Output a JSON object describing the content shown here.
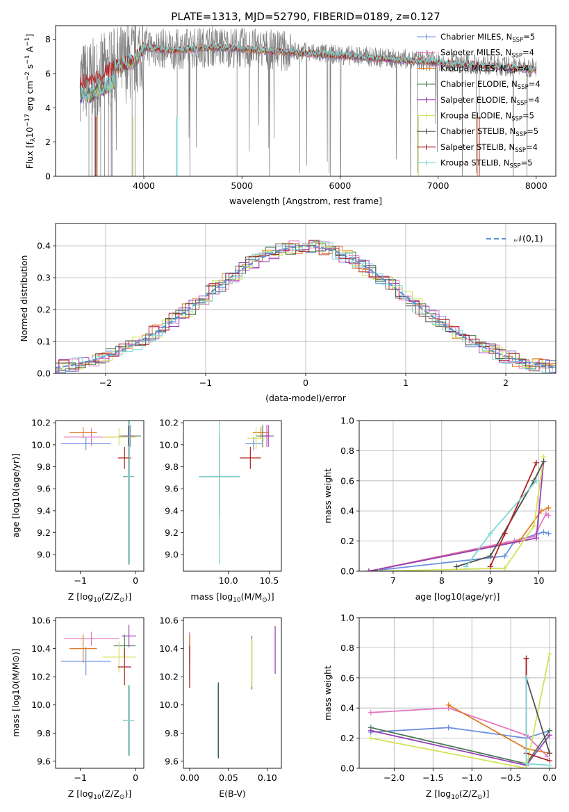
{
  "title": "PLATE=1313, MJD=52790, FIBERID=0189, z=0.127",
  "series_colors": [
    "#5f8f6f",
    "#e377c2",
    "#e07b25",
    "#4a6e4a",
    "#9b3fb5",
    "#d4e157",
    "#444444",
    "#b22222",
    "#7fd6d6"
  ],
  "series_shown": [
    "#6a8ee0",
    "#e377c2",
    "#e07b25",
    "#4a7a55",
    "#9b3fb5",
    "#d4e157",
    "#555555",
    "#b22222",
    "#7fd6d6"
  ],
  "chart_data": [
    {
      "id": "spectrum",
      "type": "line",
      "xlabel": "wavelength [Angstrom, rest frame]",
      "ylabel": "Flux [f_λ 10^-17 erg cm^-2 s^-1 A^-1]",
      "xlim": [
        3100,
        8200
      ],
      "ylim": [
        0,
        8.8
      ],
      "xticks": [
        4000,
        5000,
        6000,
        7000,
        8000
      ],
      "yticks": [
        0,
        2,
        4,
        6,
        8
      ],
      "data_color": "#808080",
      "continuum": {
        "x": [
          3450,
          3700,
          3900,
          4000,
          4300,
          4700,
          5000,
          5500,
          6000,
          6500,
          7000,
          7500,
          8000
        ],
        "y": [
          5.6,
          6.4,
          6.8,
          7.6,
          7.4,
          7.6,
          7.5,
          7.3,
          7.1,
          6.9,
          6.7,
          6.5,
          6.3
        ]
      },
      "legend": [
        {
          "label": "Chabrier MILES, N",
          "sub": "SSP",
          "tail": "=5"
        },
        {
          "label": "Salpeter MILES, N",
          "sub": "SSP",
          "tail": "=4"
        },
        {
          "label": "Kroupa MILES, N",
          "sub": "SSP",
          "tail": "=4"
        },
        {
          "label": "Chabrier ELODIE, N",
          "sub": "SSP",
          "tail": "=4"
        },
        {
          "label": "Salpeter ELODIE, N",
          "sub": "SSP",
          "tail": "=4"
        },
        {
          "label": "Kroupa ELODIE, N",
          "sub": "SSP",
          "tail": "=5"
        },
        {
          "label": "Chabrier STELIB, N",
          "sub": "SSP",
          "tail": "=5"
        },
        {
          "label": "Salpeter STELIB, N",
          "sub": "SSP",
          "tail": "=4"
        },
        {
          "label": "Kroupa STELIB, N",
          "sub": "SSP",
          "tail": "=5"
        }
      ],
      "legend_position": "right"
    },
    {
      "id": "residuals",
      "type": "histogram",
      "xlabel": "(data-model)/error",
      "ylabel": "Normed distribution",
      "xlim": [
        -2.5,
        2.5
      ],
      "ylim": [
        0,
        0.47
      ],
      "xticks": [
        -2,
        -1,
        0,
        1,
        2
      ],
      "yticks": [
        0.0,
        0.1,
        0.2,
        0.3,
        0.4
      ],
      "grid": true,
      "bin_width": 0.1,
      "legend": [
        "𝒩(0,1)"
      ],
      "legend_position": "top-right"
    },
    {
      "id": "age_vs_Z",
      "type": "scatter",
      "xlabel_main": "Z [log",
      "xlabel_sub": "10",
      "xlabel_tail": "(Z/Z",
      "xlabel_sub2": "⊙",
      "xlabel_end": ")]",
      "ylabel": "age  [log10(age/yr)]",
      "xlim": [
        -1.45,
        0.15
      ],
      "ylim": [
        8.85,
        10.22
      ],
      "xticks": [
        -1,
        0
      ],
      "yticks": [
        9.0,
        9.2,
        9.4,
        9.6,
        9.8,
        10.0,
        10.2
      ],
      "points": [
        {
          "x": -0.9,
          "y": 10.01,
          "xerr": 0.45,
          "yerr": 0.06
        },
        {
          "x": -0.8,
          "y": 10.07,
          "xerr": 0.5,
          "yerr": 0.08
        },
        {
          "x": -0.95,
          "y": 10.11,
          "xerr": 0.25,
          "yerr": 0.05
        },
        {
          "x": -0.1,
          "y": 10.08,
          "xerr": 0.2,
          "yerr": 0.1
        },
        {
          "x": -0.13,
          "y": 10.08,
          "xerr": 0.1,
          "yerr": 0.09
        },
        {
          "x": -0.3,
          "y": 10.07,
          "xerr": 0.3,
          "yerr": 0.08
        },
        {
          "x": -0.12,
          "y": 9.71,
          "xerr": 0.1,
          "yerr": 0.8
        },
        {
          "x": -0.2,
          "y": 9.88,
          "xerr": 0.12,
          "yerr": 0.1
        },
        {
          "x": -0.11,
          "y": 9.71,
          "xerr": 0.09,
          "yerr": 0.79
        }
      ]
    },
    {
      "id": "age_vs_mass",
      "type": "scatter",
      "xlabel_main": "mass [log",
      "xlabel_sub": "10",
      "xlabel_tail": "(M/M",
      "xlabel_sub2": "⊙",
      "xlabel_end": ")]",
      "xlim": [
        9.45,
        10.65
      ],
      "ylim": [
        8.85,
        10.22
      ],
      "xticks": [
        10.0,
        10.5
      ],
      "yticks": [
        9.0,
        9.2,
        9.4,
        9.6,
        9.8,
        10.0,
        10.2
      ],
      "points": [
        {
          "x": 10.31,
          "y": 10.01,
          "xerr": 0.1,
          "yerr": 0.06
        },
        {
          "x": 10.47,
          "y": 10.08,
          "xerr": 0.05,
          "yerr": 0.1
        },
        {
          "x": 10.4,
          "y": 10.11,
          "xerr": 0.1,
          "yerr": 0.05
        },
        {
          "x": 10.42,
          "y": 10.08,
          "xerr": 0.08,
          "yerr": 0.1
        },
        {
          "x": 10.49,
          "y": 10.08,
          "xerr": 0.07,
          "yerr": 0.1
        },
        {
          "x": 10.34,
          "y": 10.06,
          "xerr": 0.11,
          "yerr": 0.1
        },
        {
          "x": 9.89,
          "y": 9.71,
          "xerr": 0.25,
          "yerr": 0.36
        },
        {
          "x": 10.27,
          "y": 9.88,
          "xerr": 0.13,
          "yerr": 0.1
        },
        {
          "x": 9.89,
          "y": 9.71,
          "xerr": 0.25,
          "yerr": 0.8
        }
      ]
    },
    {
      "id": "weight_vs_age",
      "type": "line",
      "xlabel": "age  [log10(age/yr)]",
      "ylabel": "mass weight",
      "xlim": [
        6.3,
        10.35
      ],
      "ylim": [
        0,
        1.0
      ],
      "xticks": [
        7,
        8,
        9,
        10
      ],
      "yticks": [
        0.0,
        0.2,
        0.4,
        0.6,
        0.8,
        1.0
      ],
      "grid": true,
      "series": [
        {
          "x": [
            6.5,
            9.3,
            9.5,
            10.1,
            10.2
          ],
          "y": [
            0.0,
            0.1,
            0.2,
            0.26,
            0.25
          ]
        },
        {
          "x": [
            6.5,
            9.9,
            10.15,
            10.2
          ],
          "y": [
            0.0,
            0.23,
            0.38,
            0.37
          ]
        },
        {
          "x": [
            6.5,
            9.6,
            10.05,
            10.2
          ],
          "y": [
            0.0,
            0.2,
            0.4,
            0.42
          ]
        },
        {
          "x": [
            8.3,
            9.0,
            9.9,
            10.1
          ],
          "y": [
            0.03,
            0.1,
            0.6,
            0.73
          ]
        },
        {
          "x": [
            6.5,
            9.95,
            10.1
          ],
          "y": [
            0.0,
            0.22,
            0.73
          ]
        },
        {
          "x": [
            6.7,
            9.3,
            9.9,
            10.1
          ],
          "y": [
            0.0,
            0.02,
            0.3,
            0.76
          ]
        },
        {
          "x": [
            8.3,
            9.0,
            9.9,
            10.1
          ],
          "y": [
            0.03,
            0.1,
            0.6,
            0.73
          ]
        },
        {
          "x": [
            9.0,
            9.3,
            9.95
          ],
          "y": [
            0.03,
            0.25,
            0.72
          ]
        },
        {
          "x": [
            8.5,
            9.0,
            9.95
          ],
          "y": [
            0.03,
            0.25,
            0.6
          ]
        }
      ]
    },
    {
      "id": "mass_vs_Z",
      "type": "scatter",
      "xlabel_main": "Z [log",
      "xlabel_sub": "10",
      "xlabel_tail": "(Z/Z",
      "xlabel_sub2": "⊙",
      "xlabel_end": ")]",
      "ylabel": "mass [log10(M/M⊙)]",
      "xlim": [
        -1.45,
        0.15
      ],
      "ylim": [
        9.55,
        10.62
      ],
      "xticks": [
        -1,
        0
      ],
      "yticks": [
        9.6,
        9.8,
        10.0,
        10.2,
        10.4,
        10.6
      ],
      "points": [
        {
          "x": -0.9,
          "y": 10.31,
          "xerr": 0.45,
          "yerr": 0.1
        },
        {
          "x": -0.8,
          "y": 10.47,
          "xerr": 0.5,
          "yerr": 0.05
        },
        {
          "x": -0.95,
          "y": 10.4,
          "xerr": 0.25,
          "yerr": 0.1
        },
        {
          "x": -0.2,
          "y": 10.42,
          "xerr": 0.2,
          "yerr": 0.08
        },
        {
          "x": -0.12,
          "y": 10.49,
          "xerr": 0.13,
          "yerr": 0.08
        },
        {
          "x": -0.3,
          "y": 10.34,
          "xerr": 0.3,
          "yerr": 0.11
        },
        {
          "x": -0.12,
          "y": 9.89,
          "xerr": 0.1,
          "yerr": 0.25
        },
        {
          "x": -0.2,
          "y": 10.27,
          "xerr": 0.12,
          "yerr": 0.13
        },
        {
          "x": -0.11,
          "y": 9.89,
          "xerr": 0.09,
          "yerr": 0.25
        }
      ]
    },
    {
      "id": "mass_vs_ebv",
      "type": "scatter",
      "xlabel": "E(B-V)",
      "xlim": [
        -0.008,
        0.118
      ],
      "ylim": [
        9.55,
        10.62
      ],
      "xticks": [
        0.0,
        0.05,
        0.1
      ],
      "yticks": [
        9.6,
        9.8,
        10.0,
        10.2,
        10.4,
        10.6
      ],
      "points": [
        {
          "x": 0.0,
          "y": 10.31,
          "yerr": 0.14
        },
        {
          "x": 0.0,
          "y": 10.47,
          "yerr": 0.05
        },
        {
          "x": 0.0,
          "y": 10.4,
          "yerr": 0.1
        },
        {
          "x": 0.08,
          "y": 10.3,
          "yerr": 0.19
        },
        {
          "x": 0.11,
          "y": 10.39,
          "yerr": 0.17
        },
        {
          "x": 0.08,
          "y": 10.3,
          "yerr": 0.17
        },
        {
          "x": 0.037,
          "y": 9.89,
          "yerr": 0.27
        },
        {
          "x": 0.0,
          "y": 10.27,
          "yerr": 0.15
        },
        {
          "x": 0.036,
          "y": 9.89,
          "yerr": 0.26
        }
      ]
    },
    {
      "id": "weight_vs_Z",
      "type": "line",
      "xlabel_main": "Z [log",
      "xlabel_sub": "10",
      "xlabel_tail": "(Z/Z",
      "xlabel_sub2": "⊙",
      "xlabel_end": ")]",
      "ylabel": "mass weight",
      "xlim": [
        -2.45,
        0.08
      ],
      "ylim": [
        0,
        1.0
      ],
      "xticks": [
        -2.0,
        -1.5,
        -1.0,
        -0.5,
        0.0
      ],
      "yticks": [
        0.0,
        0.2,
        0.4,
        0.6,
        0.8,
        1.0
      ],
      "grid": true,
      "series": [
        {
          "x": [
            -2.3,
            -1.3,
            -0.3,
            0.0
          ],
          "y": [
            0.24,
            0.27,
            0.2,
            0.25
          ]
        },
        {
          "x": [
            -2.3,
            -1.3,
            -0.3,
            -0.03
          ],
          "y": [
            0.37,
            0.4,
            0.22,
            0.08
          ]
        },
        {
          "x": [
            -1.3,
            -0.3,
            0.0
          ],
          "y": [
            0.42,
            0.13,
            0.1
          ]
        },
        {
          "x": [
            -2.3,
            -0.3,
            0.0
          ],
          "y": [
            0.27,
            0.03,
            0.25
          ]
        },
        {
          "x": [
            -2.3,
            -0.3,
            0.0
          ],
          "y": [
            0.25,
            0.02,
            0.22
          ]
        },
        {
          "x": [
            -2.3,
            -0.3,
            0.0
          ],
          "y": [
            0.2,
            0.0,
            0.76
          ]
        },
        {
          "x": [
            -0.3,
            -0.3,
            0.0
          ],
          "y": [
            0.73,
            0.6,
            0.1
          ]
        },
        {
          "x": [
            -0.3,
            -0.3,
            0.0
          ],
          "y": [
            0.73,
            0.1,
            0.05
          ]
        },
        {
          "x": [
            -0.3,
            -0.3,
            0.0
          ],
          "y": [
            0.6,
            0.03,
            0.02
          ]
        }
      ]
    }
  ]
}
